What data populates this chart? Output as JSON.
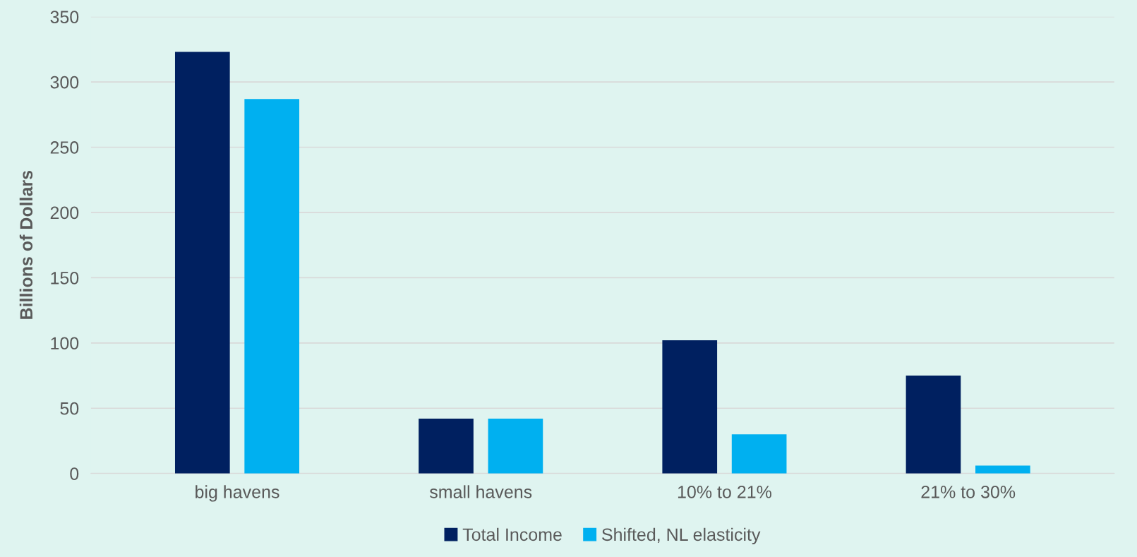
{
  "chart_data": {
    "type": "bar",
    "ylabel": "Billions of Dollars",
    "categories": [
      "big havens",
      "small havens",
      "10% to 21%",
      "21% to 30%"
    ],
    "series": [
      {
        "name": "Total Income",
        "color": "#002060",
        "values": [
          323,
          42,
          102,
          75
        ]
      },
      {
        "name": "Shifted, NL elasticity",
        "color": "#00b0f0",
        "values": [
          287,
          42,
          30,
          6
        ]
      }
    ],
    "ylim": [
      0,
      350
    ],
    "yticks": [
      0,
      50,
      100,
      150,
      200,
      250,
      300,
      350
    ],
    "grid": "y",
    "legend": "bottom"
  }
}
